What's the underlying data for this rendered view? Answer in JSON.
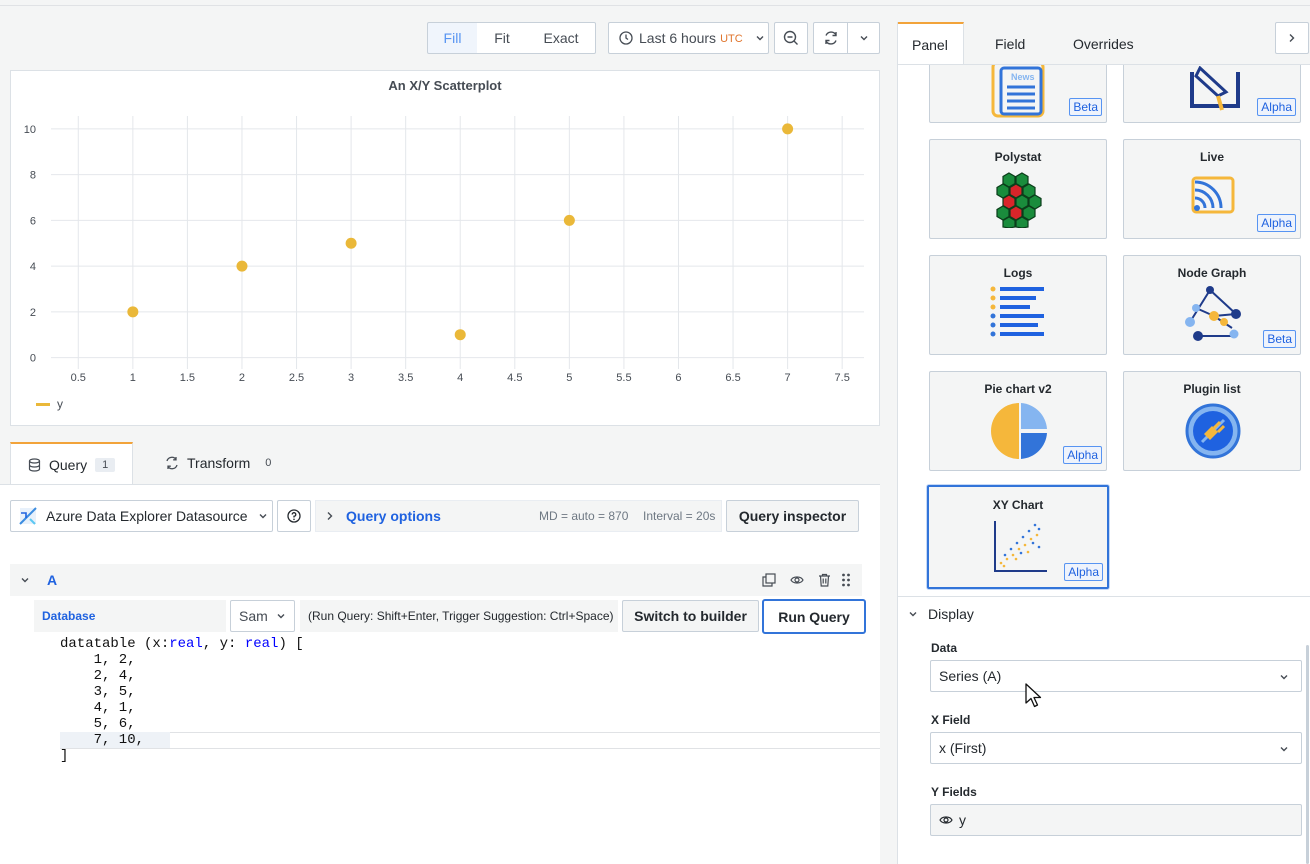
{
  "toolbar": {
    "view_modes": [
      "Fill",
      "Fit",
      "Exact"
    ],
    "active_view_mode": "Fill",
    "time_range": "Last 6 hours",
    "timezone": "UTC"
  },
  "chart_data": {
    "type": "scatter",
    "title": "An X/Y Scatterplot",
    "xlabel": "",
    "ylabel": "",
    "x": [
      1,
      2,
      3,
      4,
      5,
      7
    ],
    "series": [
      {
        "name": "y",
        "values": [
          2,
          4,
          5,
          1,
          6,
          10
        ],
        "color": "#eab839"
      }
    ],
    "xlim": [
      0.25,
      7.7
    ],
    "ylim": [
      -0.5,
      11
    ],
    "x_ticks": [
      "0.5",
      "1",
      "1.5",
      "2",
      "2.5",
      "3",
      "3.5",
      "4",
      "4.5",
      "5",
      "5.5",
      "6",
      "6.5",
      "7",
      "7.5"
    ],
    "y_ticks": [
      "0",
      "2",
      "4",
      "6",
      "8",
      "10"
    ],
    "grid": true,
    "legend_position": "bottom-left"
  },
  "query_tabs": {
    "query_label": "Query",
    "query_count": "1",
    "transform_label": "Transform",
    "transform_count": "0"
  },
  "datasource": {
    "name": "Azure Data Explorer Datasource",
    "query_options_label": "Query options",
    "md_info": "MD = auto = 870",
    "interval_info": "Interval = 20s",
    "inspector_label": "Query inspector"
  },
  "query": {
    "ref_id": "A",
    "database_label": "Database",
    "database_value": "Sam",
    "hint": "(Run Query: Shift+Enter, Trigger Suggestion: Ctrl+Space)",
    "switch_label": "Switch to builder",
    "run_label": "Run Query",
    "code_lines": {
      "l0a": "datatable (x:",
      "l0b": "real",
      "l0c": ", y: ",
      "l0d": "real",
      "l0e": ") [",
      "l1": "    1, 2,",
      "l2": "    2, 4,",
      "l3": "    3, 5,",
      "l4": "    4, 1,",
      "l5": "    5, 6,",
      "l6": "    7, 10,",
      "l7": "]"
    }
  },
  "options_tabs": [
    "Panel",
    "Field",
    "Overrides"
  ],
  "options_active_tab": "Panel",
  "visualizations": [
    {
      "title": "",
      "badge": "Beta",
      "icon": "news-icon"
    },
    {
      "title": "",
      "badge": "Alpha",
      "icon": "annotation-icon"
    },
    {
      "title": "Polystat",
      "badge": "",
      "icon": "polystat-icon"
    },
    {
      "title": "Live",
      "badge": "Alpha",
      "icon": "live-icon"
    },
    {
      "title": "Logs",
      "badge": "",
      "icon": "logs-icon"
    },
    {
      "title": "Node Graph",
      "badge": "Beta",
      "icon": "node-graph-icon"
    },
    {
      "title": "Pie chart v2",
      "badge": "Alpha",
      "icon": "pie-chart-icon"
    },
    {
      "title": "Plugin list",
      "badge": "",
      "icon": "plugin-icon"
    },
    {
      "title": "XY Chart",
      "badge": "Alpha",
      "icon": "xy-chart-icon",
      "selected": true
    }
  ],
  "display": {
    "section_label": "Display",
    "data_label": "Data",
    "data_value": "Series (A)",
    "xfield_label": "X Field",
    "xfield_value": "x (First)",
    "yfields_label": "Y Fields",
    "yfields_value": "y"
  }
}
